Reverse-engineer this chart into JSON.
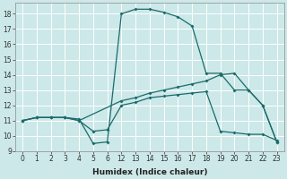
{
  "xlabel": "Humidex (Indice chaleur)",
  "bg_color": "#cce8e8",
  "line_color": "#1a6b6b",
  "grid_color": "#ffffff",
  "ylim": [
    9,
    18.7
  ],
  "yticks": [
    9,
    10,
    11,
    12,
    13,
    14,
    15,
    16,
    17,
    18
  ],
  "xtick_labels": [
    "0",
    "1",
    "2",
    "3",
    "4",
    "5",
    "6",
    "12",
    "13",
    "14",
    "15",
    "16",
    "17",
    "18",
    "19",
    "20",
    "21",
    "22",
    "23"
  ],
  "xtick_vals": [
    0,
    1,
    2,
    3,
    4,
    5,
    6,
    7,
    8,
    9,
    10,
    11,
    12,
    13,
    14,
    15,
    16,
    17,
    18
  ],
  "xlim": [
    -0.5,
    18.5
  ],
  "curve1_pos": [
    0,
    1,
    2,
    3,
    4,
    5,
    6,
    7,
    8,
    9,
    10,
    11,
    12,
    13,
    14,
    15,
    16,
    17,
    18
  ],
  "curve1_y": [
    11,
    11.2,
    11.2,
    11.2,
    11.1,
    9.5,
    9.6,
    18.0,
    18.3,
    18.3,
    18.1,
    17.8,
    17.2,
    14.1,
    14.1,
    13.0,
    13.0,
    12.0,
    9.6
  ],
  "curve2_pos": [
    0,
    1,
    2,
    3,
    4,
    5,
    6,
    7,
    8,
    9,
    10,
    11,
    12,
    13,
    14,
    15,
    16,
    17,
    18
  ],
  "curve2_y": [
    11,
    11.2,
    11.2,
    11.2,
    11.0,
    10.3,
    10.4,
    12.0,
    12.2,
    12.5,
    12.6,
    12.7,
    12.8,
    12.9,
    10.3,
    10.2,
    10.1,
    10.1,
    9.7
  ],
  "curve3_pos": [
    0,
    1,
    2,
    3,
    4,
    7,
    8,
    9,
    10,
    11,
    12,
    13,
    14,
    15,
    16,
    17,
    18
  ],
  "curve3_y": [
    11,
    11.2,
    11.2,
    11.2,
    11.0,
    12.3,
    12.5,
    12.8,
    13.0,
    13.2,
    13.4,
    13.6,
    14.0,
    14.1,
    13.0,
    12.0,
    9.6
  ],
  "marker": "D",
  "markersize": 2.0,
  "linewidth": 0.9,
  "tick_fontsize": 5.5,
  "xlabel_fontsize": 6.5
}
